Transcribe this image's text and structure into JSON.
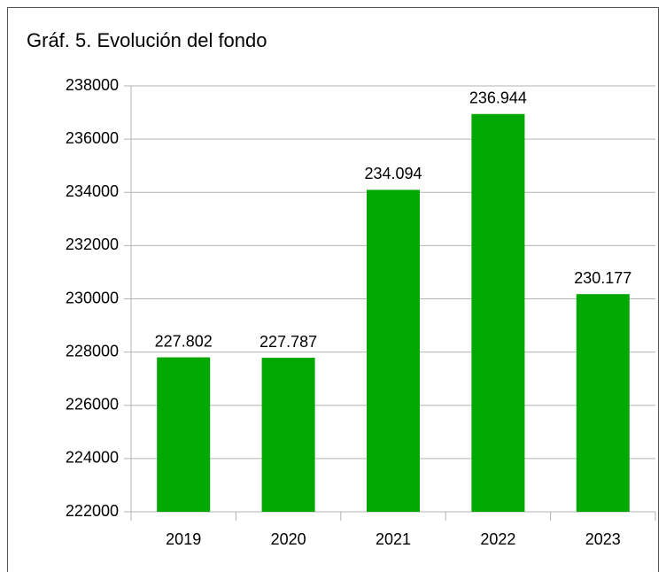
{
  "chart_data": {
    "type": "bar",
    "title": "Gráf. 5. Evolución del fondo",
    "categories": [
      "2019",
      "2020",
      "2021",
      "2022",
      "2023"
    ],
    "values": [
      227802,
      227787,
      234094,
      236944,
      230177
    ],
    "value_labels": [
      "227.802",
      "227.787",
      "234.094",
      "236.944",
      "230.177"
    ],
    "color": "#00a800",
    "ylim": [
      222000,
      238000
    ],
    "yticks": [
      222000,
      224000,
      226000,
      228000,
      230000,
      232000,
      234000,
      236000,
      238000
    ],
    "grid": true
  }
}
